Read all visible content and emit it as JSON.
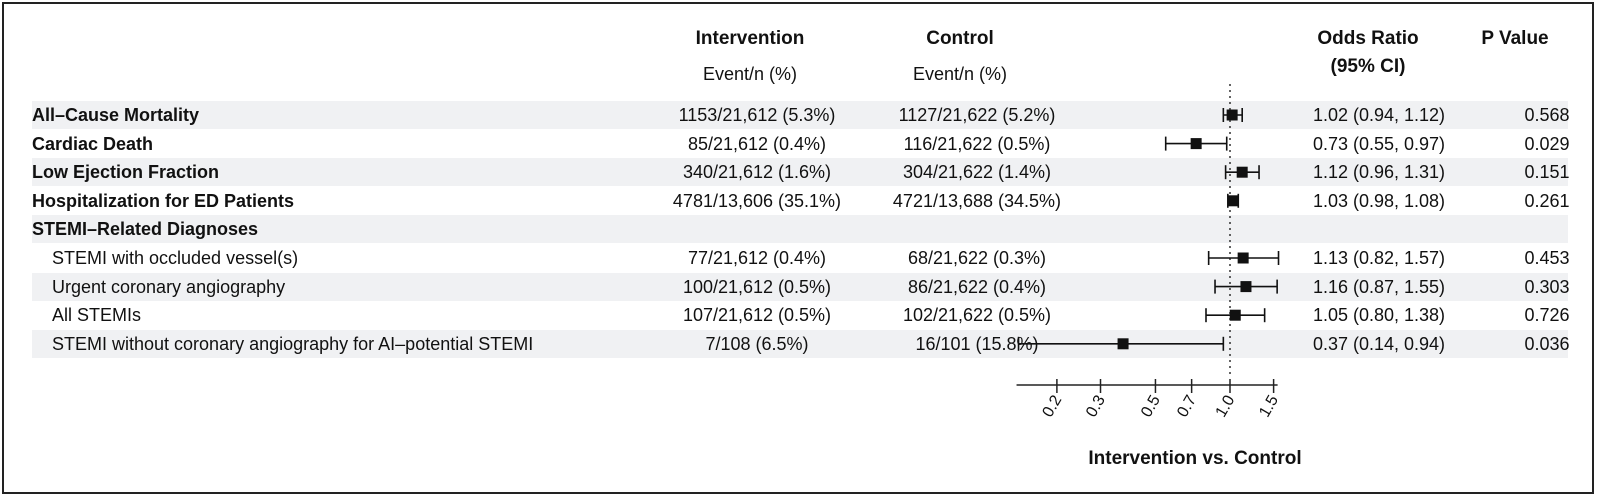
{
  "headers": {
    "intervention": "Intervention",
    "intervention_sub": "Event/n (%)",
    "control": "Control",
    "control_sub": "Event/n (%)",
    "odds_ratio": "Odds Ratio",
    "odds_ratio_sub": "(95% CI)",
    "p_value": "P Value"
  },
  "rows": [
    {
      "label": "All–Cause Mortality",
      "bold": true,
      "intervention": "1153/21,612 (5.3%)",
      "control": "1127/21,622 (5.2%)",
      "or_text": "1.02 (0.94, 1.12)",
      "p": "0.568"
    },
    {
      "label": "Cardiac Death",
      "bold": true,
      "intervention": "85/21,612 (0.4%)",
      "control": "116/21,622 (0.5%)",
      "or_text": "0.73 (0.55, 0.97)",
      "p": "0.029"
    },
    {
      "label": "Low Ejection Fraction",
      "bold": true,
      "intervention": "340/21,612 (1.6%)",
      "control": "304/21,622 (1.4%)",
      "or_text": "1.12 (0.96, 1.31)",
      "p": "0.151"
    },
    {
      "label": "Hospitalization for ED Patients",
      "bold": true,
      "intervention": "4781/13,606 (35.1%)",
      "control": "4721/13,688 (34.5%)",
      "or_text": "1.03 (0.98, 1.08)",
      "p": "0.261"
    },
    {
      "label": "STEMI–Related Diagnoses",
      "bold": true,
      "intervention": "",
      "control": "",
      "or_text": "",
      "p": ""
    },
    {
      "label": "STEMI with occluded vessel(s)",
      "bold": false,
      "intervention": "77/21,612 (0.4%)",
      "control": "68/21,622 (0.3%)",
      "or_text": "1.13 (0.82, 1.57)",
      "p": "0.453"
    },
    {
      "label": "Urgent coronary angiography",
      "bold": false,
      "intervention": "100/21,612 (0.5%)",
      "control": "86/21,622 (0.4%)",
      "or_text": "1.16 (0.87, 1.55)",
      "p": "0.303"
    },
    {
      "label": "All STEMIs",
      "bold": false,
      "intervention": "107/21,612 (0.5%)",
      "control": "102/21,622 (0.5%)",
      "or_text": "1.05 (0.80, 1.38)",
      "p": "0.726"
    },
    {
      "label": "STEMI without coronary angiography for AI–potential STEMI",
      "bold": false,
      "intervention": "7/108 (6.5%)",
      "control": "16/101 (15.8%)",
      "or_text": "0.37 (0.14, 0.94)",
      "p": "0.036"
    }
  ],
  "chart_data": {
    "type": "forest",
    "xlabel": "Intervention vs. Control",
    "x_scale": "log",
    "x_ticks": [
      "0.2",
      "0.3",
      "0.5",
      "0.7",
      "1.0",
      "1.5"
    ],
    "tick_values": [
      0.2,
      0.3,
      0.5,
      0.7,
      1.0,
      1.5
    ],
    "reference_line": 1.0,
    "points": [
      {
        "name": "All–Cause Mortality",
        "or": 1.02,
        "lo": 0.94,
        "hi": 1.12
      },
      {
        "name": "Cardiac Death",
        "or": 0.73,
        "lo": 0.55,
        "hi": 0.97
      },
      {
        "name": "Low Ejection Fraction",
        "or": 1.12,
        "lo": 0.96,
        "hi": 1.31
      },
      {
        "name": "Hospitalization for ED Patients",
        "or": 1.03,
        "lo": 0.98,
        "hi": 1.08
      },
      {
        "name": "STEMI–Related Diagnoses",
        "or": null,
        "lo": null,
        "hi": null
      },
      {
        "name": "STEMI with occluded vessel(s)",
        "or": 1.13,
        "lo": 0.82,
        "hi": 1.57
      },
      {
        "name": "Urgent coronary angiography",
        "or": 1.16,
        "lo": 0.87,
        "hi": 1.55
      },
      {
        "name": "All STEMIs",
        "or": 1.05,
        "lo": 0.8,
        "hi": 1.38
      },
      {
        "name": "STEMI without coronary angiography for AI–potential STEMI",
        "or": 0.37,
        "lo": 0.14,
        "hi": 0.94
      }
    ]
  }
}
